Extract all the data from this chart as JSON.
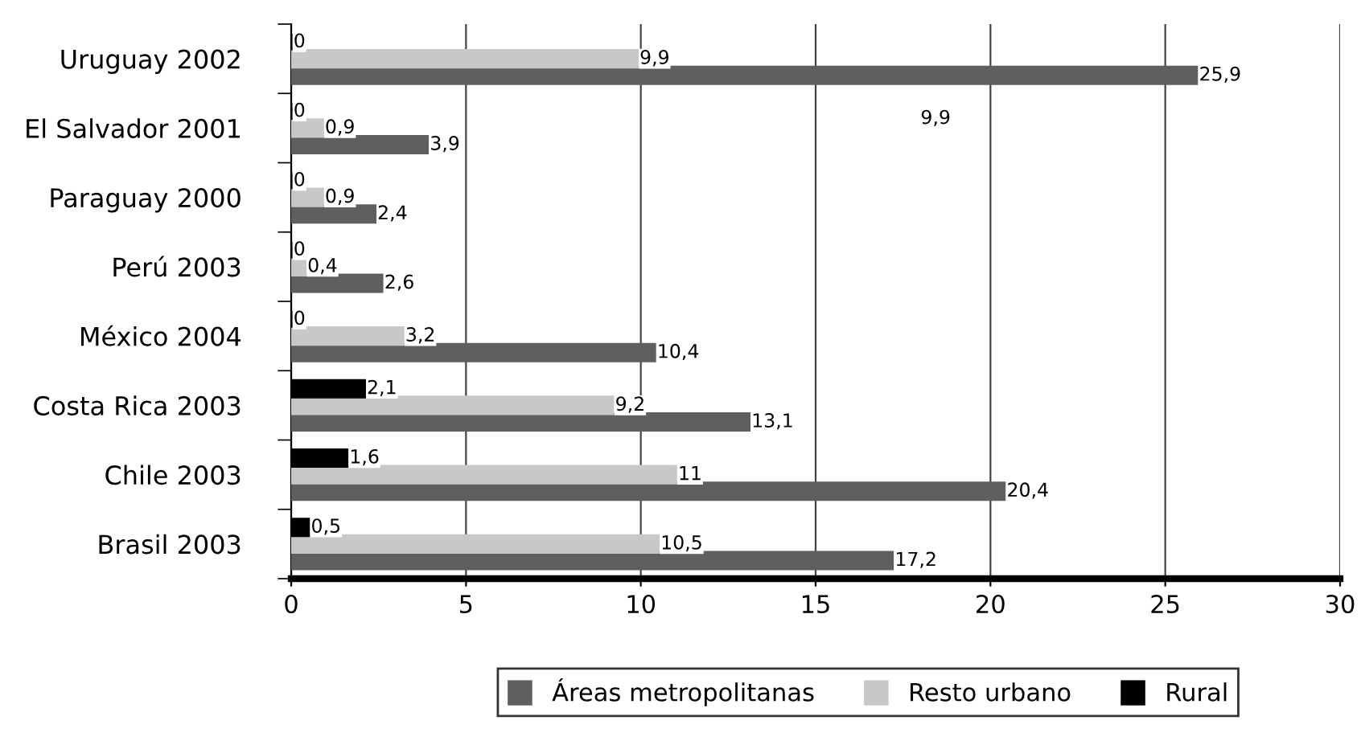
{
  "chart_data": {
    "type": "bar",
    "orientation": "horizontal",
    "categories": [
      "Uruguay 2002",
      "El Salvador 2001",
      "Paraguay 2000",
      "Perú 2003",
      "México 2004",
      "Costa Rica 2003",
      "Chile 2003",
      "Brasil 2003"
    ],
    "series": [
      {
        "name": "Áreas metropolitanas",
        "color": "#5f5f5f",
        "values": [
          25.9,
          3.9,
          2.4,
          2.6,
          10.4,
          13.1,
          20.4,
          17.2
        ],
        "value_labels": [
          "25,9",
          "3,9",
          "2,4",
          "2,6",
          "10,4",
          "13,1",
          "20,4",
          "17,2"
        ]
      },
      {
        "name": "Resto urbano",
        "color": "#c8c8c8",
        "values": [
          9.9,
          0.9,
          0.9,
          0.4,
          3.2,
          9.2,
          11,
          10.5
        ],
        "value_labels": [
          "9,9",
          "0,9",
          "0,9",
          "0,4",
          "3,2",
          "9,2",
          "11",
          "10,5"
        ]
      },
      {
        "name": "Rural",
        "color": "#000000",
        "values": [
          0,
          0,
          0,
          0,
          0,
          2.1,
          1.6,
          0.5
        ],
        "value_labels": [
          "0",
          "0",
          "0",
          "0",
          "0",
          "2,1",
          "1,6",
          "0,5"
        ]
      }
    ],
    "xlim": [
      0,
      30
    ],
    "xticks": [
      0,
      5,
      10,
      15,
      20,
      25,
      30
    ],
    "grid": "x",
    "legend": "bottom",
    "annotations": [
      "9,9"
    ]
  }
}
